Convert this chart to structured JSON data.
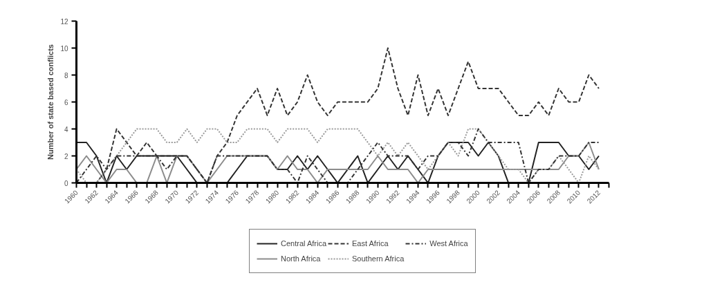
{
  "chart_data": {
    "type": "line",
    "ylabel": "Number of state based conflicts",
    "x": [
      1960,
      1961,
      1962,
      1963,
      1964,
      1965,
      1966,
      1967,
      1968,
      1969,
      1970,
      1971,
      1972,
      1973,
      1974,
      1975,
      1976,
      1977,
      1978,
      1979,
      1980,
      1981,
      1982,
      1983,
      1984,
      1985,
      1986,
      1987,
      1988,
      1989,
      1990,
      1991,
      1992,
      1993,
      1994,
      1995,
      1996,
      1997,
      1998,
      1999,
      2000,
      2001,
      2002,
      2003,
      2004,
      2005,
      2006,
      2007,
      2008,
      2009,
      2010,
      2011,
      2012
    ],
    "xlim": [
      1960,
      2013
    ],
    "xticks": [
      1960,
      {
        "value": 1961,
        "label": null
      },
      1962,
      {
        "value": 1963,
        "label": null
      },
      1964,
      {
        "value": 1965,
        "label": null
      },
      1966,
      {
        "value": 1967,
        "label": null
      },
      1968,
      {
        "value": 1969,
        "label": null
      },
      1970,
      {
        "value": 1971,
        "label": null
      },
      1972,
      {
        "value": 1973,
        "label": null
      },
      1974,
      {
        "value": 1975,
        "label": null
      },
      1976,
      {
        "value": 1977,
        "label": null
      },
      1978,
      {
        "value": 1979,
        "label": null
      },
      1980,
      {
        "value": 1981,
        "label": null
      },
      1982,
      {
        "value": 1983,
        "label": null
      },
      1984,
      {
        "value": 1985,
        "label": null
      },
      1986,
      {
        "value": 1987,
        "label": null
      },
      1988,
      {
        "value": 1989,
        "label": null
      },
      1990,
      {
        "value": 1991,
        "label": null
      },
      1992,
      {
        "value": 1993,
        "label": null
      },
      1994,
      {
        "value": 1995,
        "label": null
      },
      1996,
      {
        "value": 1997,
        "label": null
      },
      1998,
      {
        "value": 1999,
        "label": null
      },
      2000,
      {
        "value": 2001,
        "label": null
      },
      2002,
      {
        "value": 2003,
        "label": null
      },
      2004,
      {
        "value": 2005,
        "label": null
      },
      2006,
      {
        "value": 2007,
        "label": null
      },
      2008,
      {
        "value": 2009,
        "label": null
      },
      2010,
      {
        "value": 2011,
        "label": null
      },
      2012,
      {
        "value": 2013,
        "label": null
      }
    ],
    "ylim": [
      0,
      12
    ],
    "yticks": [
      0,
      2,
      4,
      6,
      8,
      10,
      12
    ],
    "grid": false,
    "legend": "bottom",
    "series": [
      {
        "name": "Central Africa",
        "color": "#222222",
        "line_style": "solid",
        "values": [
          3,
          3,
          2,
          0,
          2,
          1,
          2,
          2,
          2,
          2,
          2,
          1,
          0,
          0,
          0,
          0,
          1,
          2,
          2,
          2,
          1,
          1,
          2,
          1,
          2,
          1,
          0,
          1,
          2,
          0,
          1,
          2,
          1,
          2,
          1,
          0,
          2,
          3,
          3,
          3,
          2,
          3,
          2,
          0,
          0,
          0,
          3,
          3,
          3,
          2,
          2,
          1,
          2
        ]
      },
      {
        "name": "North Africa",
        "color": "#8c8c8c",
        "line_style": "solid",
        "values": [
          1,
          2,
          1,
          0,
          1,
          1,
          0,
          0,
          2,
          0,
          2,
          2,
          1,
          0,
          1,
          2,
          2,
          2,
          2,
          2,
          1,
          2,
          1,
          1,
          0,
          1,
          1,
          1,
          1,
          1,
          2,
          1,
          1,
          1,
          0,
          1,
          1,
          1,
          1,
          1,
          1,
          1,
          1,
          1,
          1,
          1,
          1,
          1,
          1,
          2,
          2,
          3,
          1
        ]
      },
      {
        "name": "East Africa",
        "color": "#333333",
        "line_style": "dashed",
        "values": [
          0,
          0,
          0,
          1,
          4,
          3,
          2,
          3,
          2,
          2,
          2,
          2,
          1,
          0,
          2,
          3,
          5,
          6,
          7,
          5,
          7,
          5,
          6,
          8,
          6,
          5,
          6,
          6,
          6,
          6,
          7,
          10,
          7,
          5,
          8,
          5,
          7,
          5,
          7,
          9,
          7,
          7,
          7,
          6,
          5,
          5,
          6,
          5,
          7,
          6,
          6,
          8,
          7
        ]
      },
      {
        "name": "Southern Africa",
        "color": "#999999",
        "line_style": "dotted",
        "values": [
          1,
          0,
          0,
          1,
          2,
          3,
          4,
          4,
          4,
          3,
          3,
          4,
          3,
          4,
          4,
          3,
          3,
          4,
          4,
          4,
          3,
          4,
          4,
          4,
          3,
          4,
          4,
          4,
          4,
          3,
          2,
          3,
          2,
          3,
          2,
          1,
          2,
          3,
          2,
          4,
          4,
          3,
          2,
          1,
          1,
          0,
          1,
          1,
          2,
          1,
          0,
          2,
          1
        ]
      },
      {
        "name": "West Africa",
        "color": "#333333",
        "line_style": "dashdot",
        "values": [
          0,
          1,
          2,
          1,
          2,
          2,
          2,
          2,
          2,
          1,
          2,
          2,
          1,
          0,
          2,
          2,
          2,
          2,
          2,
          2,
          1,
          1,
          0,
          2,
          1,
          0,
          0,
          0,
          1,
          2,
          3,
          2,
          2,
          2,
          1,
          2,
          2,
          3,
          3,
          2,
          4,
          3,
          3,
          3,
          3,
          0,
          1,
          1,
          2,
          2,
          2,
          3,
          3
        ]
      }
    ]
  }
}
